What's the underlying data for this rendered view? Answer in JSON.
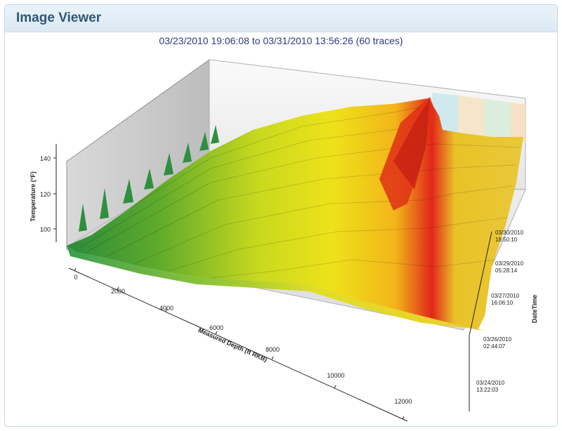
{
  "window": {
    "title": "Image Viewer"
  },
  "chart_data": {
    "type": "surface",
    "title": "03/23/2010 19:06:08 to 03/31/2010 13:56:26 (60 traces)",
    "xlabel": "Measured Depth (ft RKB)",
    "ylabel": "Temperature (°F)",
    "zlabel": "DateTime",
    "x_ticks": [
      "0",
      "2000",
      "4000",
      "6000",
      "8000",
      "10000",
      "12000"
    ],
    "y_ticks": [
      "100",
      "120",
      "140"
    ],
    "z_ticks": [
      [
        "03/24/2010",
        "13:22:03"
      ],
      [
        "03/26/2010",
        "02:44:07"
      ],
      [
        "03/27/2010",
        "16:06:10"
      ],
      [
        "03/29/2010",
        "05:28:14"
      ],
      [
        "03/30/2010",
        "18:50:10"
      ]
    ],
    "traces": 60,
    "xlim": [
      0,
      13000
    ],
    "ylim": [
      90,
      145
    ],
    "colors": {
      "low": "#2a8a3c",
      "mid": "#e8e21c",
      "high": "#e2261a",
      "band_colors": [
        "#cfe9ef",
        "#f6e6c9",
        "#dbeedd",
        "#f6e1c6"
      ]
    }
  }
}
